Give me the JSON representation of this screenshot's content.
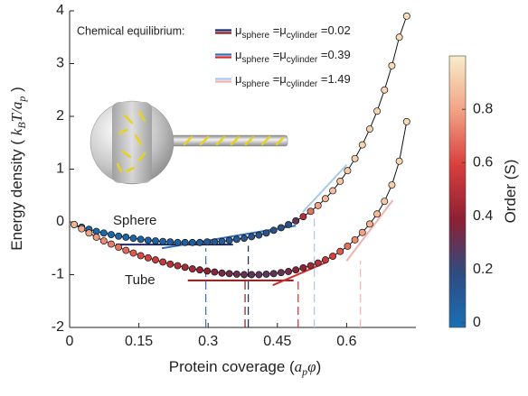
{
  "chart_data": {
    "type": "scatter",
    "xlabel_parts": [
      "Protein coverage (",
      "a",
      "p",
      "φ",
      ")"
    ],
    "ylabel_parts": [
      "Energy density ( ",
      "k",
      "B",
      "T/a",
      "p",
      " )"
    ],
    "xlim": [
      0,
      0.75
    ],
    "xticks": [
      0,
      0.15,
      0.3,
      0.45,
      0.6
    ],
    "ylim": [
      -2,
      4
    ],
    "yticks": [
      -2,
      -1,
      0,
      1,
      2,
      3,
      4
    ],
    "line_color": "#111111",
    "annotations": [
      "Sphere",
      "Tube"
    ],
    "legend_title": "Chemical equilibrium:",
    "colorbar": {
      "label": "Order (S)",
      "clim": [
        0,
        1
      ],
      "ticks": [
        0,
        0.2,
        0.4,
        0.6,
        0.8
      ],
      "colormap": [
        "#1a6fb5",
        "#2f4b80",
        "#8e2033",
        "#d8403c",
        "#f2a384",
        "#f6edc9"
      ]
    },
    "series": [
      {
        "x": [
          0.01,
          0.026,
          0.042,
          0.058,
          0.074,
          0.09,
          0.106,
          0.122,
          0.138,
          0.154,
          0.17,
          0.186,
          0.202,
          0.218,
          0.234,
          0.25,
          0.266,
          0.282,
          0.298,
          0.314,
          0.33,
          0.346,
          0.362,
          0.378,
          0.394,
          0.41,
          0.426,
          0.442,
          0.458,
          0.474,
          0.49,
          0.506,
          0.522,
          0.538,
          0.554,
          0.57,
          0.586,
          0.602,
          0.618,
          0.634,
          0.65,
          0.666,
          0.682,
          0.698,
          0.714,
          0.73
        ],
        "values": [
          -0.05,
          -0.1,
          -0.14,
          -0.18,
          -0.21,
          -0.24,
          -0.27,
          -0.29,
          -0.31,
          -0.33,
          -0.35,
          -0.36,
          -0.37,
          -0.38,
          -0.39,
          -0.39,
          -0.39,
          -0.39,
          -0.38,
          -0.38,
          -0.37,
          -0.35,
          -0.33,
          -0.31,
          -0.28,
          -0.25,
          -0.21,
          -0.16,
          -0.11,
          -0.05,
          0.02,
          0.1,
          0.2,
          0.31,
          0.44,
          0.59,
          0.77,
          0.97,
          1.2,
          1.46,
          1.76,
          2.1,
          2.5,
          2.96,
          3.5,
          3.9
        ],
        "order": [
          0.02,
          0.03,
          0.03,
          0.04,
          0.04,
          0.05,
          0.05,
          0.06,
          0.06,
          0.07,
          0.07,
          0.08,
          0.08,
          0.09,
          0.09,
          0.1,
          0.1,
          0.11,
          0.11,
          0.12,
          0.12,
          0.13,
          0.13,
          0.14,
          0.14,
          0.15,
          0.15,
          0.16,
          0.17,
          0.18,
          0.3,
          0.5,
          0.7,
          0.8,
          0.85,
          0.88,
          0.9,
          0.91,
          0.92,
          0.93,
          0.93,
          0.94,
          0.94,
          0.95,
          0.95,
          0.96
        ]
      },
      {
        "x": [
          0.01,
          0.026,
          0.042,
          0.058,
          0.074,
          0.09,
          0.106,
          0.122,
          0.138,
          0.154,
          0.17,
          0.186,
          0.202,
          0.218,
          0.234,
          0.25,
          0.266,
          0.282,
          0.298,
          0.314,
          0.33,
          0.346,
          0.362,
          0.378,
          0.394,
          0.41,
          0.426,
          0.442,
          0.458,
          0.474,
          0.49,
          0.506,
          0.522,
          0.538,
          0.554,
          0.57,
          0.586,
          0.602,
          0.618,
          0.634,
          0.65,
          0.666,
          0.682,
          0.698,
          0.714,
          0.73
        ],
        "values": [
          -0.05,
          -0.13,
          -0.21,
          -0.29,
          -0.36,
          -0.42,
          -0.48,
          -0.54,
          -0.59,
          -0.64,
          -0.68,
          -0.72,
          -0.76,
          -0.8,
          -0.83,
          -0.86,
          -0.89,
          -0.91,
          -0.93,
          -0.95,
          -0.97,
          -0.98,
          -0.99,
          -1.0,
          -1.0,
          -1.0,
          -0.99,
          -0.98,
          -0.96,
          -0.94,
          -0.91,
          -0.87,
          -0.83,
          -0.78,
          -0.72,
          -0.65,
          -0.56,
          -0.46,
          -0.34,
          -0.2,
          -0.04,
          0.15,
          0.39,
          0.7,
          1.15,
          1.9
        ],
        "order": [
          0.85,
          0.82,
          0.8,
          0.78,
          0.75,
          0.72,
          0.7,
          0.68,
          0.65,
          0.62,
          0.6,
          0.57,
          0.55,
          0.52,
          0.5,
          0.47,
          0.45,
          0.42,
          0.4,
          0.38,
          0.36,
          0.34,
          0.33,
          0.32,
          0.31,
          0.3,
          0.3,
          0.31,
          0.33,
          0.35,
          0.38,
          0.41,
          0.45,
          0.5,
          0.55,
          0.6,
          0.65,
          0.7,
          0.75,
          0.8,
          0.84,
          0.87,
          0.9,
          0.92,
          0.94,
          0.95
        ]
      }
    ],
    "equilibria": [
      {
        "parts": [
          "μ",
          "sphere",
          " =μ",
          "cylinder",
          " =0.02"
        ],
        "sphere": {
          "color": "#1b2a6b",
          "x": [
            0.1,
            0.354
          ],
          "values": [
            -0.43,
            -0.43
          ],
          "dash_x": 0.387,
          "dash_top": -0.45
        },
        "tube": {
          "color": "#8b1a1a",
          "x": [
            0.256,
            0.485
          ],
          "values": [
            -1.11,
            -1.11
          ],
          "dash_x": 0.38,
          "dash_top": -1.11
        }
      },
      {
        "parts": [
          "μ",
          "sphere",
          " =μ",
          "cylinder",
          " =0.39"
        ],
        "sphere": {
          "color": "#2f6fc0",
          "x": [
            0.2,
            0.49
          ],
          "values": [
            -0.5,
            -0.07
          ],
          "dash_x": 0.295,
          "dash_top": -0.5
        },
        "tube": {
          "color": "#d62a2a",
          "x": [
            0.44,
            0.56
          ],
          "values": [
            -1.2,
            -0.75
          ],
          "dash_x": 0.495,
          "dash_top": -1.11
        }
      },
      {
        "parts": [
          "μ",
          "sphere",
          " =μ",
          "cylinder",
          " =1.49"
        ],
        "sphere": {
          "color": "#a9c8ec",
          "x": [
            0.505,
            0.6
          ],
          "values": [
            0.19,
            1.08
          ],
          "dash_x": 0.53,
          "dash_top": 0.19
        },
        "tube": {
          "color": "#f4b0b0",
          "x": [
            0.6,
            0.7
          ],
          "values": [
            -0.74,
            0.41
          ],
          "dash_x": 0.63,
          "dash_top": -0.74
        }
      }
    ]
  }
}
